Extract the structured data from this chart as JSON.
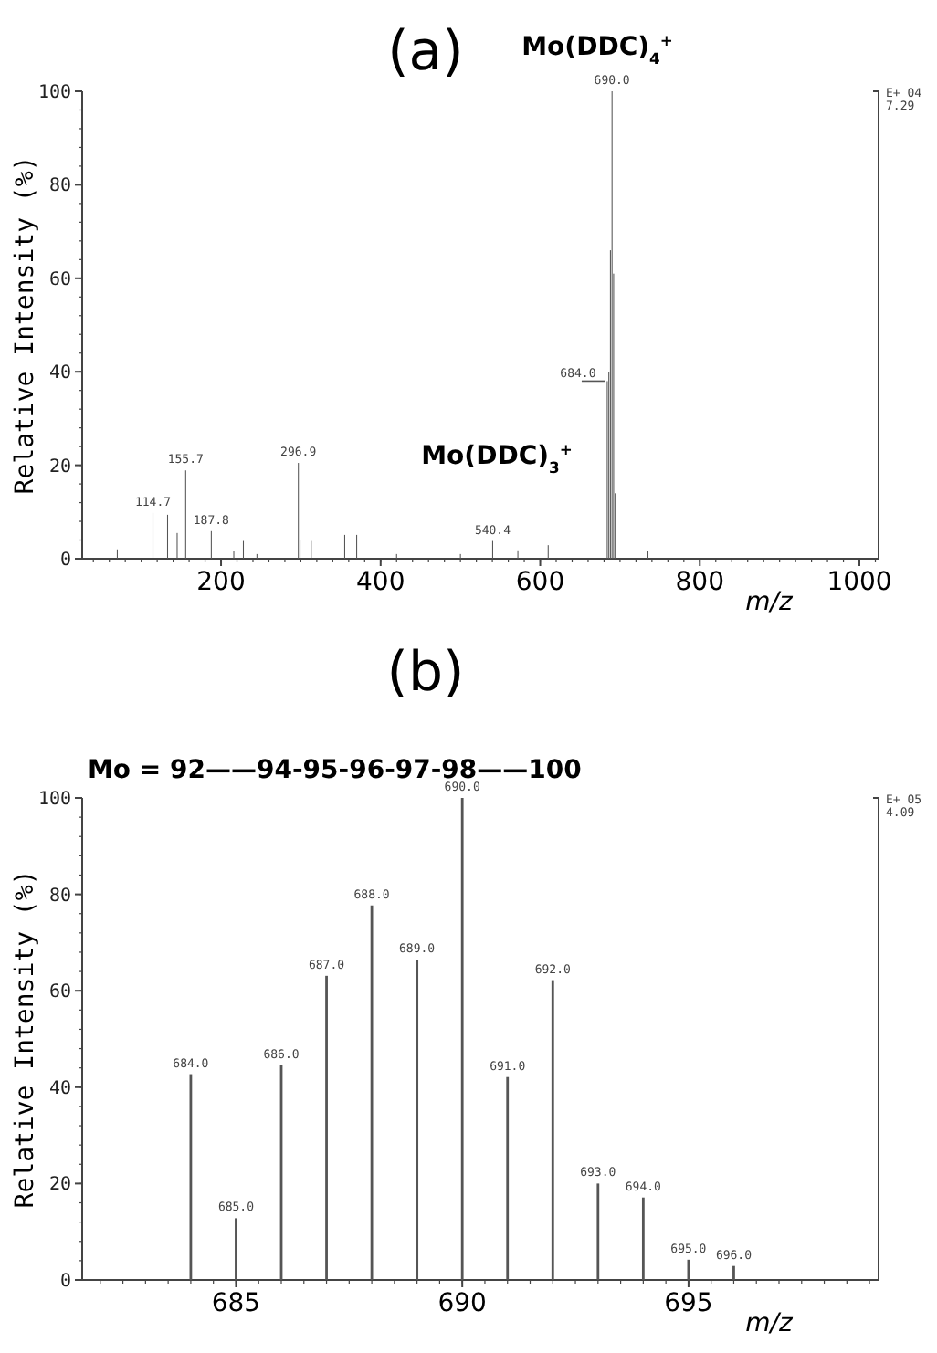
{
  "chart_data": [
    {
      "type": "bar",
      "title": "(a)",
      "xlabel": "m/z",
      "ylabel": "Relative Intensity (%)",
      "x": [
        70,
        114.7,
        133,
        145,
        155.7,
        187.8,
        216,
        228,
        245,
        296.9,
        299,
        313,
        355,
        370,
        420,
        500,
        540.4,
        572,
        610,
        684,
        686,
        688,
        690,
        692,
        694,
        735
      ],
      "values": [
        2,
        9.8,
        9.4,
        5.5,
        18.9,
        5.9,
        1.6,
        3.8,
        1,
        20.5,
        4,
        3.8,
        5.1,
        5.1,
        1,
        1,
        3.8,
        1.8,
        2.9,
        38,
        40,
        66,
        100,
        61,
        14,
        1.6
      ],
      "color": "#555555",
      "xlim": [
        26,
        1024
      ],
      "xticks": [
        200,
        400,
        600,
        800,
        1000
      ],
      "ylim": [
        0,
        100
      ],
      "yticks": [
        0,
        20,
        40,
        60,
        80,
        100
      ],
      "annotations": [
        "E+ 04",
        "7.29",
        "Mo(DDC)$_{4}$$^{+}$",
        "Mo(DDC)$_{3}$$^{+}$",
        {
          "text": "114.7",
          "x": 114.7,
          "y": 9.8
        },
        {
          "text": "155.7",
          "x": 155.7,
          "y": 18.9
        },
        {
          "text": "187.8",
          "x": 187.8,
          "y": 5.9
        },
        {
          "text": "296.9",
          "x": 296.9,
          "y": 20.5
        },
        {
          "text": "540.4",
          "x": 540.4,
          "y": 3.8
        },
        {
          "text": "684.0",
          "x": 684,
          "y": 38
        },
        {
          "text": "690.0",
          "x": 690,
          "y": 100
        }
      ]
    },
    {
      "type": "bar",
      "title": "(b)",
      "subtitle": "Mo = 92——94-95-96-97-98——100",
      "xlabel": "m/z",
      "ylabel": "Relative Intensity (%)",
      "x": [
        684,
        685,
        686,
        687,
        688,
        689,
        690,
        691,
        692,
        693,
        694,
        695,
        696
      ],
      "values": [
        42.7,
        12.8,
        44.6,
        63.1,
        77.7,
        66.4,
        100,
        42.1,
        62.2,
        20.0,
        17.1,
        4.2,
        2.9
      ],
      "color": "#555555",
      "xlim": [
        681.6,
        699.2
      ],
      "xticks": [
        685,
        690,
        695
      ],
      "ylim": [
        0,
        100
      ],
      "yticks": [
        0,
        20,
        40,
        60,
        80,
        100
      ],
      "annotations": [
        "E+ 05",
        "4.09",
        {
          "text": "684.0",
          "x": 684,
          "y": 42.7
        },
        {
          "text": "685.0",
          "x": 685,
          "y": 12.8
        },
        {
          "text": "686.0",
          "x": 686,
          "y": 44.6
        },
        {
          "text": "687.0",
          "x": 687,
          "y": 63.1
        },
        {
          "text": "688.0",
          "x": 688,
          "y": 77.7
        },
        {
          "text": "689.0",
          "x": 689,
          "y": 66.4
        },
        {
          "text": "690.0",
          "x": 690,
          "y": 100
        },
        {
          "text": "691.0",
          "x": 691,
          "y": 42.1
        },
        {
          "text": "692.0",
          "x": 692,
          "y": 62.2
        },
        {
          "text": "693.0",
          "x": 693,
          "y": 20.0
        },
        {
          "text": "694.0",
          "x": 694,
          "y": 17.1
        },
        {
          "text": "695.0",
          "x": 695,
          "y": 4.2
        },
        {
          "text": "696.0",
          "x": 696,
          "y": 2.9
        }
      ]
    }
  ]
}
